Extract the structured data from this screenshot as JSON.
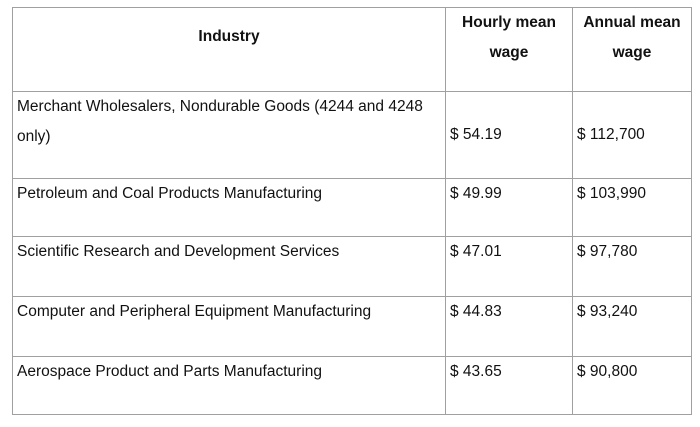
{
  "table": {
    "headers": [
      "Industry",
      "Hourly mean wage",
      "Annual mean wage"
    ],
    "rows": [
      [
        "Merchant Wholesalers, Nondurable Goods (4244 and 4248 only)",
        "$ 54.19",
        "$ 112,700"
      ],
      [
        "Petroleum and Coal Products Manufacturing",
        "$ 49.99",
        "$ 103,990"
      ],
      [
        "Scientific Research and Development Services",
        "$ 47.01",
        "$ 97,780"
      ],
      [
        "Computer and Peripheral Equipment Manufacturing",
        "$ 44.83",
        "$ 93,240"
      ],
      [
        "Aerospace Product and Parts Manufacturing",
        "$ 43.65",
        "$ 90,800"
      ]
    ]
  }
}
